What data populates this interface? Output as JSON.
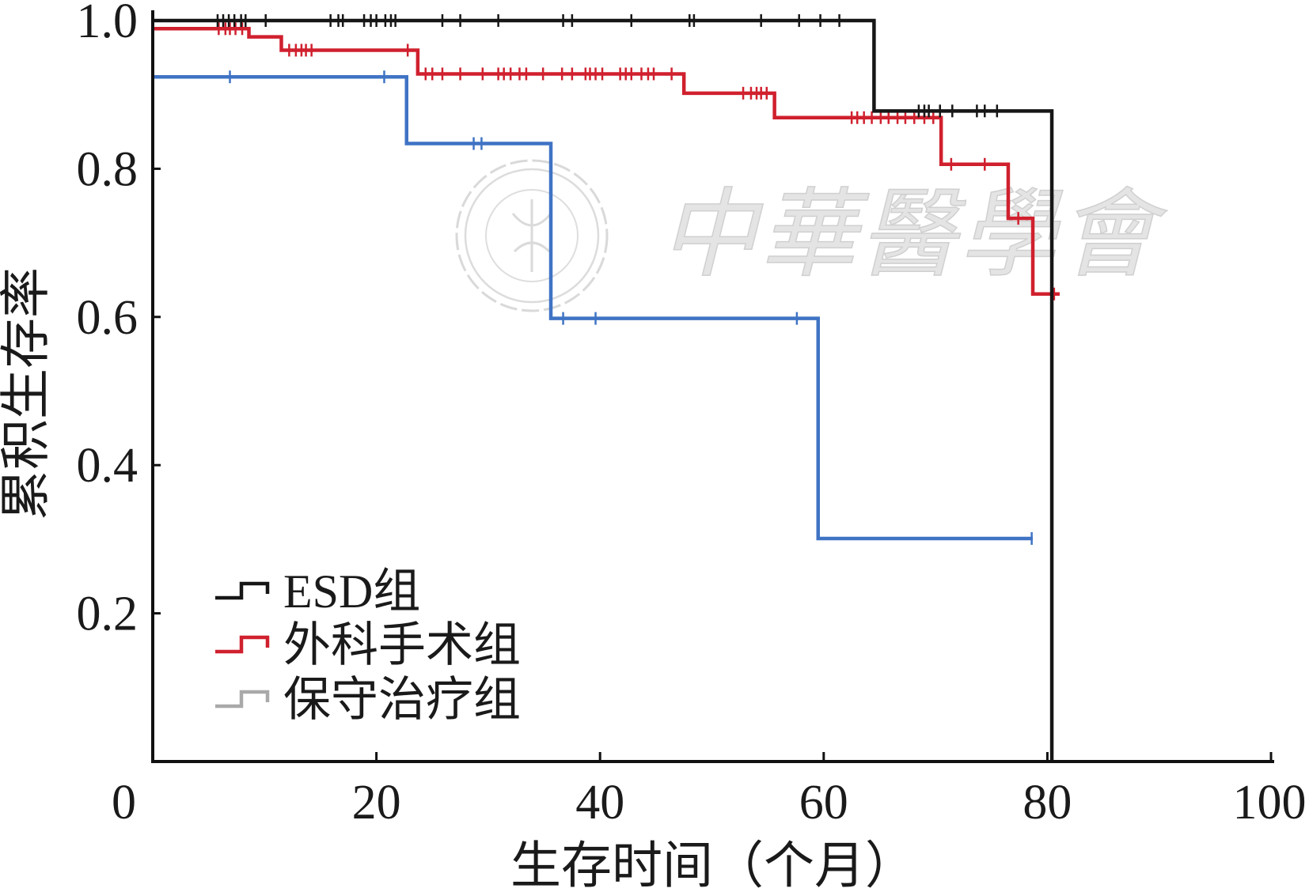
{
  "chart_data": {
    "type": "line",
    "drawstyle": "steps-post",
    "title": "",
    "xlabel": "生存时间（个月）",
    "ylabel": "累积生存率",
    "xlim": [
      0,
      100
    ],
    "ylim": [
      0,
      1.0
    ],
    "xticks": [
      0,
      20,
      40,
      60,
      80,
      100
    ],
    "xtick_labels": [
      "0",
      "20",
      "40",
      "60",
      "80",
      "100"
    ],
    "yticks": [
      0.2,
      0.4,
      0.6,
      0.8,
      1.0
    ],
    "ytick_labels": [
      "0.2",
      "0.4",
      "0.6",
      "0.8",
      "1.0"
    ],
    "grid": false,
    "legend_position": "bottom-left",
    "series": [
      {
        "name": "ESD组",
        "color": "#161616",
        "legend_color": "#161616",
        "steps": [
          [
            0,
            1.0
          ],
          [
            64.5,
            0.878
          ],
          [
            80.4,
            0.0
          ]
        ],
        "end": 80.4,
        "censored": [
          5.8,
          6.3,
          6.8,
          7.3,
          7.9,
          8.3,
          10.1,
          15.9,
          16.6,
          17.0,
          18.9,
          19.5,
          20.0,
          20.8,
          21.3,
          21.7,
          25.9,
          27.5,
          30.9,
          36.7,
          37.5,
          42.8,
          48.0,
          48.4,
          54.4,
          57.8,
          59.7,
          61.4,
          68.5,
          69.0,
          69.4,
          70.4,
          71.5,
          73.7,
          74.4,
          75.5
        ]
      },
      {
        "name": "外科手术组",
        "color": "#d0202e",
        "legend_color": "#d0202e",
        "steps": [
          [
            0,
            0.989
          ],
          [
            8.6,
            0.978
          ],
          [
            11.5,
            0.96
          ],
          [
            23.7,
            0.928
          ],
          [
            47.5,
            0.902
          ],
          [
            55.6,
            0.869
          ],
          [
            70.5,
            0.806
          ],
          [
            76.5,
            0.733
          ],
          [
            78.7,
            0.631
          ]
        ],
        "end": 81.1,
        "censored": [
          5.9,
          6.5,
          6.9,
          7.4,
          8.0,
          12.2,
          12.8,
          13.3,
          13.7,
          14.2,
          22.8,
          24.4,
          25.0,
          25.9,
          27.5,
          29.5,
          30.9,
          31.4,
          32.0,
          32.8,
          33.4,
          34.9,
          36.6,
          37.5,
          38.7,
          39.1,
          39.6,
          40.2,
          41.8,
          42.3,
          42.8,
          43.7,
          44.3,
          44.8,
          46.4,
          52.8,
          53.5,
          54.0,
          54.4,
          54.9,
          62.5,
          63.0,
          63.6,
          64.3,
          65.1,
          65.8,
          66.6,
          67.3,
          68.1,
          69.0,
          69.8,
          71.4,
          74.4,
          77.4,
          80.6
        ]
      },
      {
        "name": "保守治疗组",
        "color": "#3f73c4",
        "legend_color": "#a9a9a9",
        "steps": [
          [
            0,
            0.924
          ],
          [
            22.7,
            0.834
          ],
          [
            35.6,
            0.598
          ],
          [
            59.5,
            0.301
          ]
        ],
        "end": 78.7,
        "censored": [
          6.9,
          20.7,
          28.7,
          29.4,
          36.7,
          39.6,
          57.6,
          78.6
        ]
      }
    ]
  },
  "watermark": {
    "text": "中華醫學會",
    "color": "#e4e4e4",
    "outline_color": "#d0d0d0"
  }
}
